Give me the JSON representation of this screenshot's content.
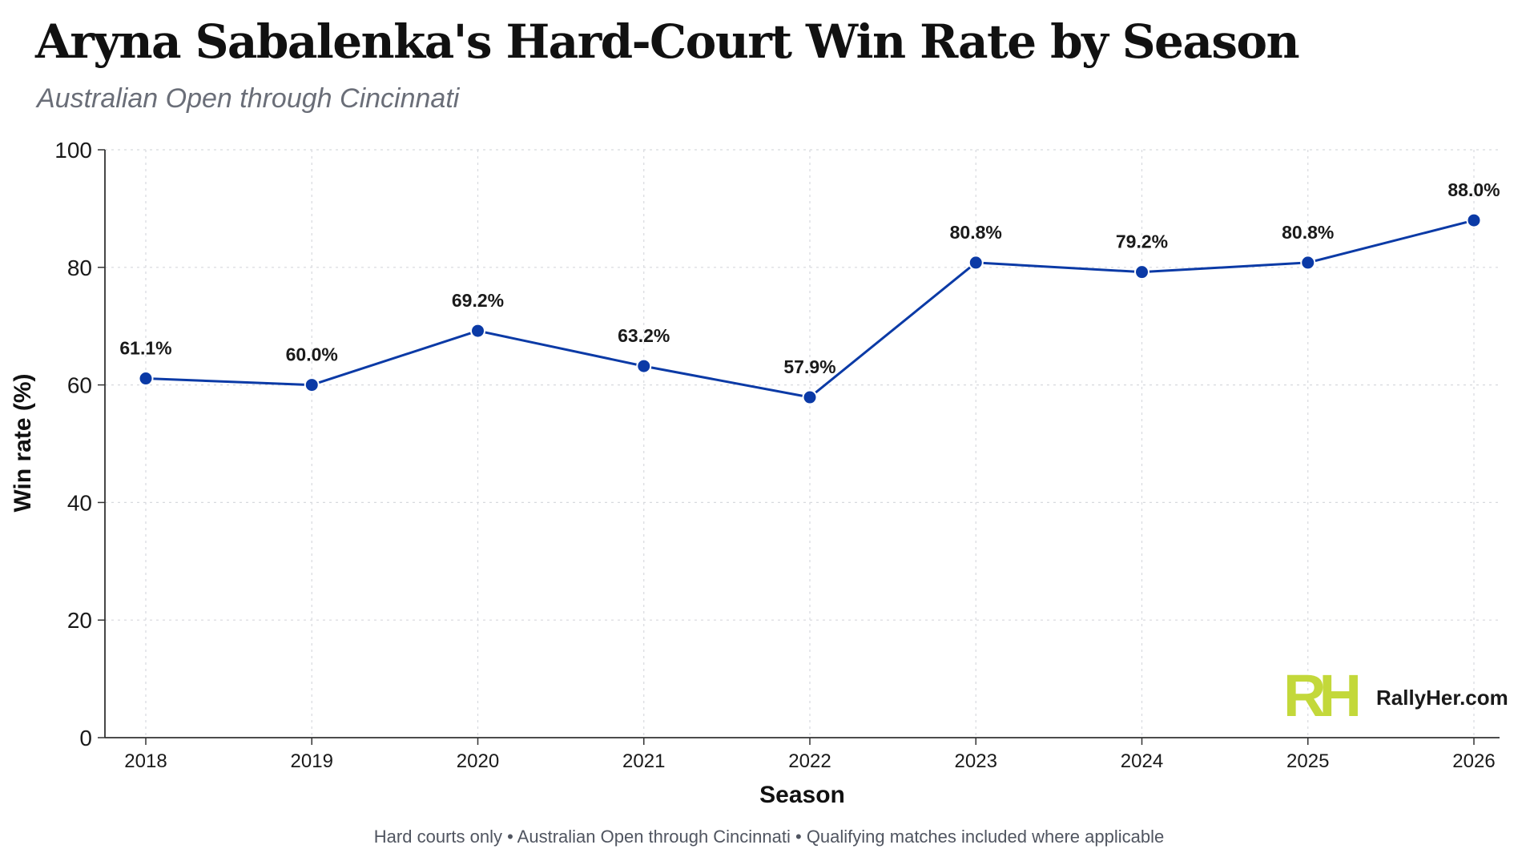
{
  "header": {
    "title": "Aryna Sabalenka's Hard-Court Win Rate by Season",
    "subtitle": "Australian Open through Cincinnati"
  },
  "footer": {
    "note": "Hard courts only • Australian Open through Cincinnati • Qualifying matches included where applicable"
  },
  "brand": {
    "logo_text": "RH",
    "site": "RallyHer.com",
    "logo_color": "#c3d83a"
  },
  "chart_data": {
    "type": "line",
    "title": "Aryna Sabalenka's Hard-Court Win Rate by Season",
    "subtitle": "Australian Open through Cincinnati",
    "xlabel": "Season",
    "ylabel": "Win rate (%)",
    "ylim": [
      0,
      100
    ],
    "yticks": [
      0,
      20,
      40,
      60,
      80,
      100
    ],
    "categories": [
      "2018",
      "2019",
      "2020",
      "2021",
      "2022",
      "2023",
      "2024",
      "2025",
      "2026"
    ],
    "series": [
      {
        "values": [
          61.1,
          60.0,
          69.2,
          63.2,
          57.9,
          80.8,
          79.2,
          80.8,
          88.0
        ],
        "labels": [
          "61.1%",
          "60.0%",
          "69.2%",
          "63.2%",
          "57.9%",
          "80.8%",
          "79.2%",
          "80.8%",
          "88.0%"
        ],
        "color": "#0b3aa6"
      }
    ],
    "grid": true,
    "legend": "none"
  }
}
